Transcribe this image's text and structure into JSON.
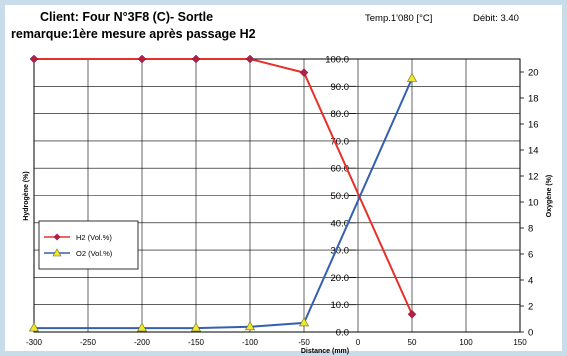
{
  "header": {
    "title": "Client: Four N°3F8 (C)- Sortle",
    "subtitle": "remarque:1ère mesure après passage H2",
    "temp": "Temp.1'080 [°C]",
    "debit": "Débit: 3.40"
  },
  "chart_data": {
    "type": "line",
    "xlabel": "Distance (mm)",
    "ylabel": "Hydrogène (%)",
    "y2label": "Oxygène (%)",
    "xlim": [
      -300,
      150
    ],
    "ylim": [
      0,
      100
    ],
    "y2lim": [
      0,
      21
    ],
    "xticks": [
      -300,
      -250,
      -200,
      -150,
      -100,
      -50,
      0,
      50,
      100,
      150
    ],
    "yticks": [
      "0.0",
      "10.0",
      "20.0",
      "30.0",
      "40.0",
      "50.0",
      "60.0",
      "70.0",
      "80.0",
      "90.0",
      "100.0"
    ],
    "y2ticks": [
      0,
      2,
      4,
      6,
      8,
      10,
      12,
      14,
      16,
      18,
      20
    ],
    "grid": true,
    "legend_position": "left-middle",
    "series": [
      {
        "name": "H2  (Vol.%)",
        "axis": "left",
        "color": "#e8302a",
        "marker": "diamond",
        "x": [
          -300,
          -200,
          -150,
          -100,
          -50,
          50
        ],
        "y": [
          100,
          100,
          100,
          100,
          95,
          6.5
        ]
      },
      {
        "name": "O2  (Vol.%)",
        "axis": "right",
        "color": "#3560b0",
        "marker": "triangle",
        "x": [
          -300,
          -200,
          -150,
          -100,
          -50,
          50
        ],
        "y": [
          0.3,
          0.3,
          0.3,
          0.4,
          0.7,
          19.5
        ]
      }
    ]
  }
}
